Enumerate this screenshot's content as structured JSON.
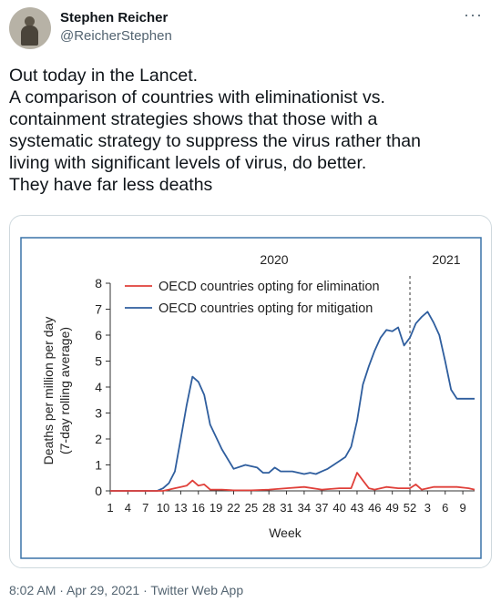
{
  "author": {
    "name": "Stephen Reicher",
    "handle": "@ReicherStephen"
  },
  "more_label": "···",
  "tweet": {
    "lines": [
      "Out today in the Lancet.",
      "A comparison of countries with eliminationist vs.",
      "containment strategies shows that those with a",
      "systematic strategy to suppress the virus rather than",
      "living with significant levels of virus, do better.",
      "They have far less deaths"
    ]
  },
  "meta": {
    "time": "8:02 AM",
    "sep1": " · ",
    "date": "Apr 29, 2021",
    "sep2": " · ",
    "source": "Twitter Web App"
  },
  "colors": {
    "elimination": "#e0403a",
    "mitigation": "#2f5e9e"
  },
  "chart_data": {
    "type": "line",
    "year_labels": [
      "2020",
      "2021"
    ],
    "ylabel": "Deaths per million per day",
    "ylabel2": "(7-day rolling average)",
    "xlabel": "Week",
    "ylim": [
      0,
      8
    ],
    "yticks": [
      "0",
      "1",
      "2",
      "3",
      "4",
      "5",
      "6",
      "7",
      "8"
    ],
    "xticks": [
      "1",
      "4",
      "7",
      "10",
      "13",
      "16",
      "19",
      "22",
      "25",
      "28",
      "31",
      "34",
      "37",
      "40",
      "43",
      "46",
      "49",
      "52",
      "3",
      "6",
      "9"
    ],
    "year_divider_week": 52,
    "series": [
      {
        "name": "OECD countries opting for elimination",
        "color": "#e0403a",
        "x": [
          1,
          4,
          7,
          9,
          10,
          11,
          12,
          13,
          14,
          15,
          16,
          17,
          18,
          20,
          22,
          25,
          28,
          31,
          34,
          37,
          40,
          42,
          43,
          44,
          45,
          46,
          48,
          50,
          52,
          53,
          54,
          56,
          58,
          60,
          62,
          63
        ],
        "y": [
          0,
          0,
          0,
          0,
          0,
          0.05,
          0.1,
          0.15,
          0.2,
          0.4,
          0.2,
          0.25,
          0.05,
          0.05,
          0.02,
          0.02,
          0.05,
          0.1,
          0.15,
          0.05,
          0.1,
          0.1,
          0.7,
          0.4,
          0.1,
          0.05,
          0.15,
          0.1,
          0.1,
          0.25,
          0.05,
          0.15,
          0.15,
          0.15,
          0.1,
          0.05
        ]
      },
      {
        "name": "OECD countries opting for mitigation",
        "color": "#2f5e9e",
        "x": [
          1,
          4,
          7,
          9,
          10,
          11,
          12,
          13,
          14,
          15,
          16,
          17,
          18,
          20,
          22,
          24,
          26,
          27,
          28,
          29,
          30,
          32,
          34,
          35,
          36,
          37,
          38,
          39,
          40,
          41,
          42,
          43,
          44,
          45,
          46,
          47,
          48,
          49,
          50,
          51,
          52,
          53,
          54,
          55,
          56,
          57,
          58,
          59,
          60,
          61,
          62,
          63
        ],
        "y": [
          0,
          0,
          0,
          0,
          0.1,
          0.3,
          0.75,
          2.0,
          3.3,
          4.4,
          4.2,
          3.7,
          2.55,
          1.6,
          0.85,
          1.0,
          0.9,
          0.7,
          0.7,
          0.9,
          0.75,
          0.75,
          0.65,
          0.7,
          0.65,
          0.75,
          0.85,
          1.0,
          1.15,
          1.3,
          1.7,
          2.7,
          4.1,
          4.8,
          5.4,
          5.9,
          6.2,
          6.15,
          6.3,
          5.6,
          5.9,
          6.45,
          6.7,
          6.9,
          6.5,
          6.0,
          5.0,
          3.9,
          3.55,
          3.55,
          3.55,
          3.55
        ]
      }
    ]
  }
}
